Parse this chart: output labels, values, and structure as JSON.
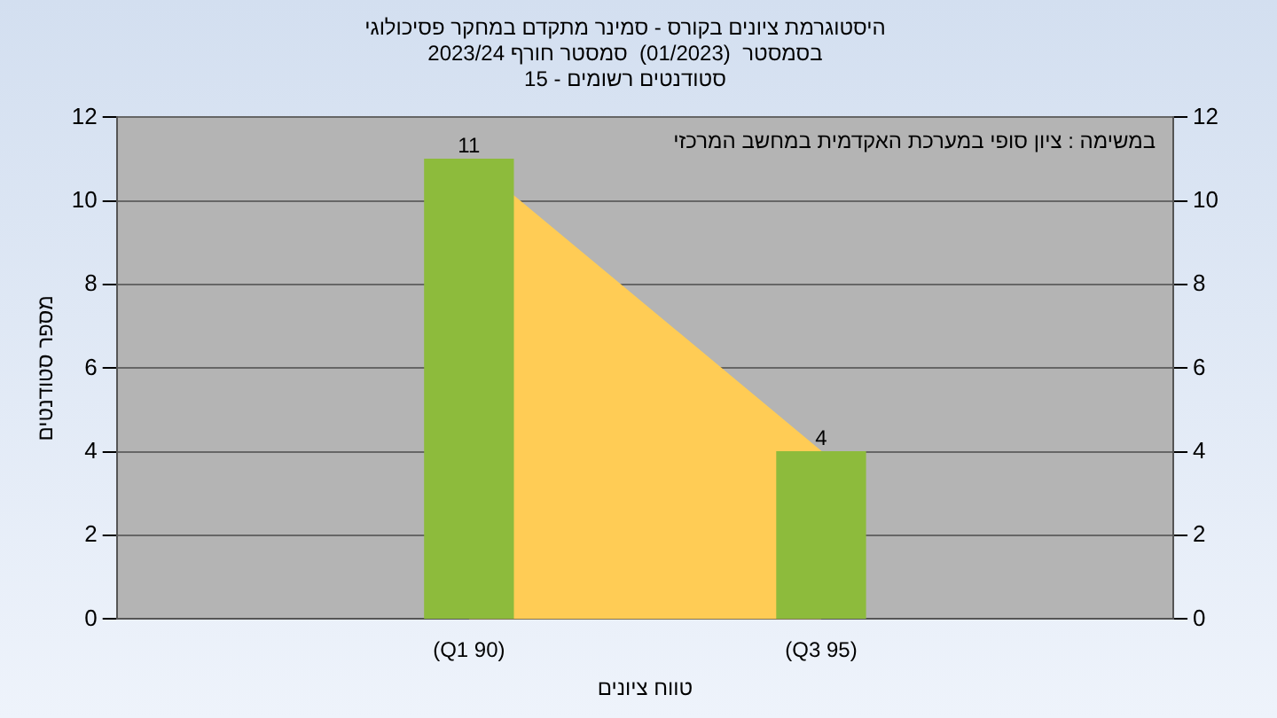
{
  "chart_data": {
    "type": "bar",
    "title": "היסטוגרמת ציונים בקורס - סמינר מתקדם במחקר פסיכולוגי\nבסמסטר  (01/2023)  סמסטר חורף 2023/24\nסטודנטים רשומים - 15",
    "xlabel": "טווח ציונים",
    "ylabel": "מספר סטודנטים",
    "annotations": [
      "במשימה : ציון סופי במערכת האקדמית במחשב המרכזי"
    ],
    "categories": [
      null,
      "(Q1 90)",
      "(Q3 95)",
      null
    ],
    "series": [
      {
        "type": "area",
        "color": "#ffcc55",
        "values": [
          null,
          11,
          4,
          null
        ]
      },
      {
        "color": "#8dbb3c",
        "values": [
          null,
          11,
          4,
          null
        ],
        "value_labels": [
          null,
          "11",
          "4",
          null
        ]
      }
    ],
    "ylim": [
      0,
      12
    ],
    "yticks": [
      0,
      2,
      4,
      6,
      8,
      10,
      12
    ],
    "y2lim": [
      0,
      12
    ],
    "y2ticks": [
      0,
      2,
      4,
      6,
      8,
      10,
      12
    ],
    "grid": "y",
    "legend": false
  }
}
